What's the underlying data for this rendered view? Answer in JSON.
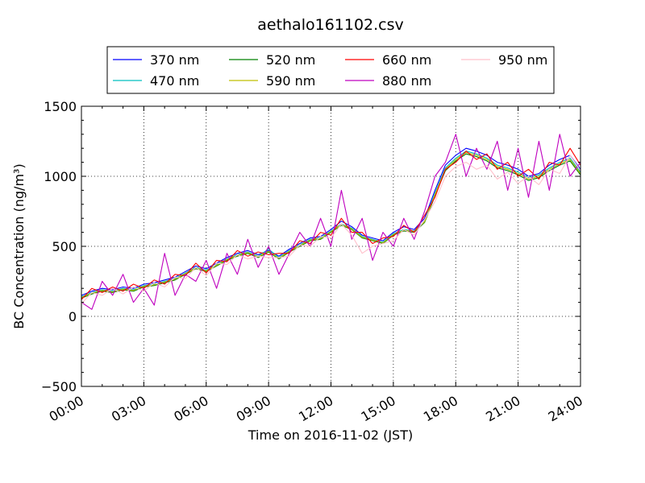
{
  "chart_data": {
    "type": "line",
    "title": "aethalo161102.csv",
    "xlabel": "Time on 2016-11-02 (JST)",
    "ylabel": "BC Concentration (ng/m³)",
    "xlim": [
      0,
      24
    ],
    "ylim": [
      -500,
      1500
    ],
    "grid": true,
    "legend_position": "top",
    "x_tick_labels": [
      "00:00",
      "03:00",
      "06:00",
      "09:00",
      "12:00",
      "15:00",
      "18:00",
      "21:00",
      "24:00"
    ],
    "x_ticks": [
      0,
      3,
      6,
      9,
      12,
      15,
      18,
      21,
      24
    ],
    "y_tick_labels": [
      "−500",
      "0",
      "500",
      "1000",
      "1500"
    ],
    "y_ticks": [
      -500,
      0,
      500,
      1000,
      1500
    ],
    "x": [
      0,
      0.5,
      1,
      1.5,
      2,
      2.5,
      3,
      3.5,
      4,
      4.5,
      5,
      5.5,
      6,
      6.5,
      7,
      7.5,
      8,
      8.5,
      9,
      9.5,
      10,
      10.5,
      11,
      11.5,
      12,
      12.5,
      13,
      13.5,
      14,
      14.5,
      15,
      15.5,
      16,
      16.5,
      17,
      17.5,
      18,
      18.5,
      19,
      19.5,
      20,
      20.5,
      21,
      21.5,
      22,
      22.5,
      23,
      23.5,
      24
    ],
    "series": [
      {
        "name": "370 nm",
        "color": "#0000ff",
        "values": [
          150,
          180,
          200,
          190,
          210,
          200,
          230,
          240,
          260,
          280,
          320,
          360,
          340,
          380,
          420,
          450,
          470,
          440,
          470,
          430,
          480,
          520,
          560,
          570,
          620,
          680,
          640,
          580,
          560,
          540,
          600,
          640,
          620,
          700,
          900,
          1080,
          1150,
          1200,
          1180,
          1150,
          1100,
          1080,
          1050,
          1000,
          1020,
          1080,
          1120,
          1150,
          1050
        ]
      },
      {
        "name": "470 nm",
        "color": "#00bfbf",
        "values": [
          140,
          170,
          190,
          180,
          200,
          190,
          220,
          230,
          250,
          270,
          310,
          350,
          330,
          370,
          410,
          440,
          460,
          430,
          480,
          420,
          470,
          510,
          550,
          560,
          610,
          660,
          630,
          570,
          550,
          530,
          590,
          620,
          610,
          680,
          880,
          1060,
          1130,
          1180,
          1160,
          1130,
          1080,
          1060,
          1030,
          990,
          1010,
          1060,
          1100,
          1130,
          1030
        ]
      },
      {
        "name": "520 nm",
        "color": "#008000",
        "values": [
          130,
          160,
          180,
          170,
          190,
          180,
          210,
          220,
          240,
          260,
          300,
          340,
          320,
          360,
          400,
          430,
          450,
          420,
          460,
          410,
          460,
          500,
          540,
          550,
          600,
          650,
          620,
          560,
          540,
          520,
          580,
          610,
          600,
          670,
          860,
          1040,
          1110,
          1160,
          1140,
          1110,
          1060,
          1040,
          1010,
          970,
          990,
          1040,
          1080,
          1110,
          1010
        ]
      },
      {
        "name": "590 nm",
        "color": "#bfbf00",
        "values": [
          135,
          165,
          185,
          175,
          195,
          185,
          215,
          225,
          245,
          265,
          305,
          345,
          325,
          365,
          405,
          435,
          455,
          425,
          465,
          415,
          465,
          505,
          545,
          555,
          605,
          655,
          625,
          565,
          545,
          525,
          585,
          615,
          605,
          675,
          870,
          1050,
          1120,
          1170,
          1150,
          1120,
          1070,
          1050,
          1020,
          980,
          1000,
          1050,
          1090,
          1120,
          1020
        ]
      },
      {
        "name": "660 nm",
        "color": "#ff0000",
        "values": [
          120,
          200,
          170,
          210,
          180,
          230,
          200,
          260,
          230,
          300,
          290,
          380,
          310,
          400,
          390,
          470,
          430,
          460,
          440,
          450,
          450,
          540,
          520,
          600,
          580,
          700,
          600,
          600,
          520,
          560,
          570,
          650,
          600,
          720,
          850,
          1050,
          1100,
          1180,
          1120,
          1160,
          1050,
          1100,
          1000,
          1050,
          980,
          1100,
          1080,
          1200,
          1080
        ]
      },
      {
        "name": "880 nm",
        "color": "#bf00bf",
        "values": [
          100,
          50,
          250,
          150,
          300,
          100,
          200,
          80,
          450,
          150,
          300,
          250,
          400,
          200,
          450,
          300,
          550,
          350,
          500,
          300,
          450,
          600,
          500,
          700,
          500,
          900,
          550,
          700,
          400,
          600,
          500,
          700,
          550,
          750,
          1000,
          1100,
          1300,
          1000,
          1200,
          1050,
          1250,
          900,
          1200,
          850,
          1250,
          900,
          1300,
          1000,
          1100
        ]
      },
      {
        "name": "950 nm",
        "color": "#ffc0cb",
        "values": [
          90,
          170,
          150,
          200,
          160,
          210,
          180,
          240,
          210,
          280,
          270,
          350,
          290,
          380,
          370,
          440,
          410,
          430,
          420,
          420,
          430,
          510,
          500,
          570,
          560,
          660,
          580,
          450,
          500,
          520,
          540,
          620,
          580,
          690,
          820,
          1000,
          1070,
          1100,
          1050,
          1080,
          980,
          1030,
          950,
          1000,
          940,
          1050,
          1020,
          1150,
          1040
        ]
      }
    ]
  }
}
